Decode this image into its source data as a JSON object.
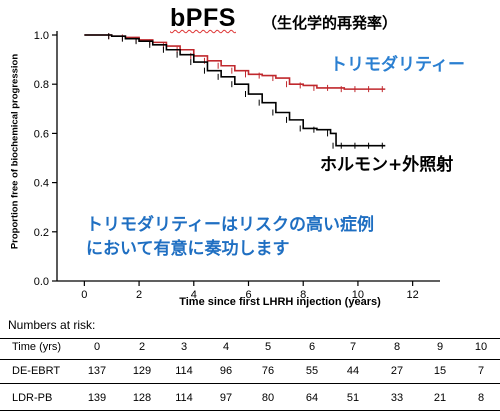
{
  "chart_data": {
    "type": "line",
    "title": "bPFS",
    "subtitle": "（生化学的再発率）",
    "xlabel": "Time since first LHRH injection (years)",
    "ylabel": "Proportion free of biochemical progression",
    "xlim": [
      -1,
      13
    ],
    "ylim": [
      0.0,
      1.0
    ],
    "xticks": [
      0,
      2,
      4,
      6,
      8,
      10,
      12
    ],
    "yticks": [
      0.0,
      0.2,
      0.4,
      0.6,
      0.8,
      1.0
    ],
    "xtick_labels": [
      "0",
      "2",
      "4",
      "6",
      "8",
      "10",
      "12"
    ],
    "ytick_labels": [
      "0.0",
      "0.2",
      "0.4",
      "0.6",
      "0.8",
      "1.0"
    ],
    "grid": false,
    "series": [
      {
        "name": "トリモダリティー",
        "color": "#c0282d",
        "x": [
          0,
          1.0,
          1.5,
          2.0,
          2.5,
          3.0,
          3.5,
          4.0,
          4.5,
          5.0,
          5.5,
          6.0,
          6.5,
          7.0,
          7.5,
          8.0,
          8.5,
          9.0,
          9.5,
          10.0,
          10.5,
          11.0
        ],
        "values": [
          1.0,
          0.995,
          0.99,
          0.98,
          0.97,
          0.955,
          0.94,
          0.915,
          0.895,
          0.875,
          0.855,
          0.84,
          0.835,
          0.825,
          0.8,
          0.795,
          0.785,
          0.785,
          0.78,
          0.78,
          0.78,
          0.78
        ]
      },
      {
        "name": "ホルモン+外照射",
        "color": "#000000",
        "x": [
          0,
          1.0,
          1.5,
          2.0,
          2.5,
          3.0,
          3.5,
          4.0,
          4.5,
          5.0,
          5.5,
          6.0,
          6.5,
          7.0,
          7.5,
          8.0,
          8.5,
          9.0,
          9.2,
          9.5,
          10.0,
          10.5,
          11.0
        ],
        "values": [
          1.0,
          0.995,
          0.985,
          0.975,
          0.96,
          0.94,
          0.92,
          0.89,
          0.855,
          0.83,
          0.8,
          0.76,
          0.725,
          0.685,
          0.655,
          0.62,
          0.615,
          0.6,
          0.55,
          0.55,
          0.55,
          0.55,
          0.55
        ]
      }
    ],
    "annotations": [
      "トリモダリティーはリスクの高い症例",
      "において有意に奏功します"
    ]
  },
  "labels": {
    "trimodality": "トリモダリティー",
    "hormone_ebrt": "ホルモン+外照射"
  },
  "risk_table": {
    "heading": "Numbers at risk:",
    "header_label": "Time (yrs)",
    "times": [
      "0",
      "2",
      "3",
      "4",
      "5",
      "6",
      "7",
      "8",
      "9",
      "10"
    ],
    "rows": [
      {
        "name": "DE-EBRT",
        "values": [
          "137",
          "129",
          "114",
          "96",
          "76",
          "55",
          "44",
          "27",
          "15",
          "7"
        ]
      },
      {
        "name": "LDR-PB",
        "values": [
          "139",
          "128",
          "114",
          "97",
          "80",
          "64",
          "51",
          "33",
          "21",
          "8"
        ]
      }
    ]
  }
}
